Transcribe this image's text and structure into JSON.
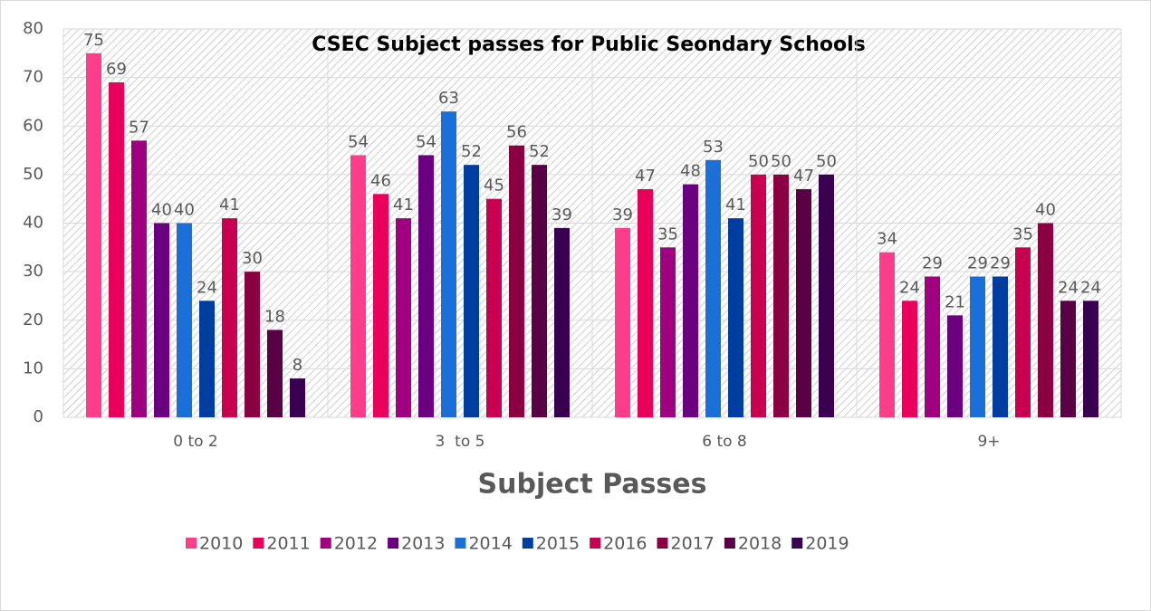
{
  "chart_data": {
    "type": "bar",
    "title": "CSEC Subject passes for Public Seondary Schools",
    "x_label": "Subject Passes",
    "categories": [
      "0 to 2",
      "3  to 5",
      "6 to 8",
      "9+"
    ],
    "series": [
      {
        "name": "2010",
        "color": "#ff3d8b",
        "values": [
          75,
          54,
          39,
          34
        ]
      },
      {
        "name": "2011",
        "color": "#e8005a",
        "values": [
          69,
          46,
          47,
          24
        ]
      },
      {
        "name": "2012",
        "color": "#a0007f",
        "values": [
          57,
          41,
          35,
          29
        ]
      },
      {
        "name": "2013",
        "color": "#6a0080",
        "values": [
          40,
          54,
          48,
          21
        ]
      },
      {
        "name": "2014",
        "color": "#1b6fd8",
        "values": [
          40,
          63,
          53,
          29
        ]
      },
      {
        "name": "2015",
        "color": "#003da0",
        "values": [
          24,
          52,
          41,
          29
        ]
      },
      {
        "name": "2016",
        "color": "#c8004f",
        "values": [
          41,
          45,
          50,
          35
        ]
      },
      {
        "name": "2017",
        "color": "#8b0040",
        "values": [
          30,
          56,
          50,
          40
        ]
      },
      {
        "name": "2018",
        "color": "#5a0045",
        "values": [
          18,
          52,
          47,
          24
        ]
      },
      {
        "name": "2019",
        "color": "#3a0050",
        "values": [
          8,
          39,
          50,
          24
        ]
      }
    ],
    "ylim": [
      0,
      80
    ],
    "yticks": [
      0,
      10,
      20,
      30,
      40,
      50,
      60,
      70,
      80
    ],
    "grid": true,
    "legend": "bottom"
  }
}
